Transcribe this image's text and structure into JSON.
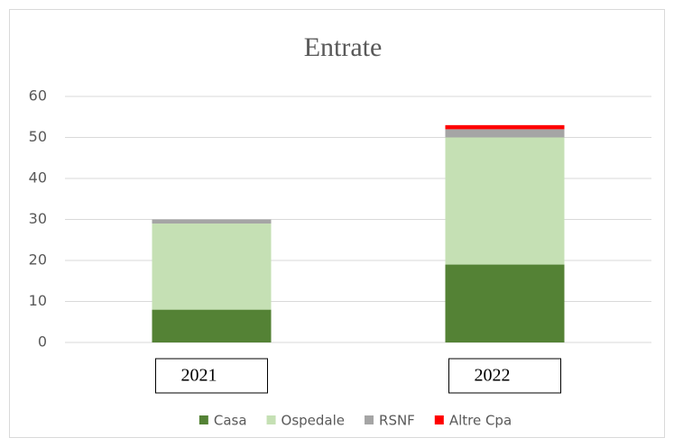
{
  "chart_data": {
    "type": "stacked_bar",
    "title": "Entrate",
    "categories": [
      "2021",
      "2022"
    ],
    "series": [
      {
        "name": "Casa",
        "color": "#548235",
        "values": [
          8,
          19
        ]
      },
      {
        "name": "Ospedale",
        "color": "#c5e0b4",
        "values": [
          21,
          31
        ]
      },
      {
        "name": "RSNF",
        "color": "#a5a5a5",
        "values": [
          1,
          2
        ]
      },
      {
        "name": "Altre Cpa",
        "color": "#ff0000",
        "values": [
          0,
          1
        ]
      }
    ],
    "ylim": [
      0,
      60
    ],
    "yticks": [
      0,
      10,
      20,
      30,
      40,
      50,
      60
    ],
    "grid": true,
    "legend": "bottom"
  }
}
